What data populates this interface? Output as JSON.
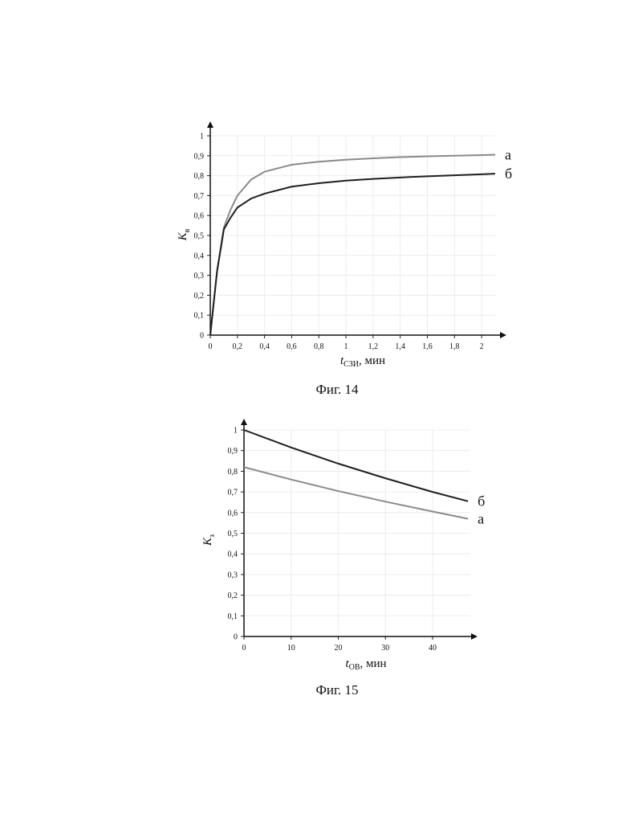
{
  "chart_data": [
    {
      "type": "line",
      "caption": "Фиг. 14",
      "ylabel_symbol": "K",
      "ylabel_subscript": "в",
      "xlabel_symbol": "t",
      "xlabel_subscript": "СЗИ",
      "xlabel_suffix": ", мин",
      "x": [
        0,
        0.05,
        0.1,
        0.15,
        0.2,
        0.3,
        0.4,
        0.6,
        0.8,
        1,
        1.2,
        1.4,
        1.6,
        1.8,
        2,
        2.1
      ],
      "series": [
        {
          "name": "а",
          "color": "#8a8a8a",
          "values": [
            0,
            0.32,
            0.54,
            0.63,
            0.7,
            0.78,
            0.82,
            0.855,
            0.87,
            0.88,
            0.887,
            0.893,
            0.897,
            0.9,
            0.903,
            0.905
          ]
        },
        {
          "name": "б",
          "color": "#1e1e1e",
          "values": [
            0,
            0.32,
            0.53,
            0.59,
            0.64,
            0.685,
            0.71,
            0.745,
            0.762,
            0.775,
            0.784,
            0.791,
            0.797,
            0.802,
            0.807,
            0.81
          ]
        }
      ],
      "xlim": [
        0,
        2.1
      ],
      "ylim": [
        0,
        1
      ],
      "xticks": [
        0,
        {
          "value": 0.2,
          "label": "0,2"
        },
        {
          "value": 0.4,
          "label": "0,4"
        },
        {
          "value": 0.6,
          "label": "0,6"
        },
        {
          "value": 0.8,
          "label": "0,8"
        },
        1,
        {
          "value": 1.2,
          "label": "1,2"
        },
        {
          "value": 1.4,
          "label": "1,4"
        },
        {
          "value": 1.6,
          "label": "1,6"
        },
        {
          "value": 1.8,
          "label": "1,8"
        },
        2
      ],
      "yticks": [
        0,
        {
          "value": 0.1,
          "label": "0,1"
        },
        {
          "value": 0.2,
          "label": "0,2"
        },
        {
          "value": 0.3,
          "label": "0,3"
        },
        {
          "value": 0.4,
          "label": "0,4"
        },
        {
          "value": 0.5,
          "label": "0,5"
        },
        {
          "value": 0.6,
          "label": "0,6"
        },
        {
          "value": 0.7,
          "label": "0,7"
        },
        {
          "value": 0.8,
          "label": "0,8"
        },
        {
          "value": 0.9,
          "label": "0,9"
        },
        1
      ],
      "grid": true
    },
    {
      "type": "line",
      "caption": "Фиг. 15",
      "ylabel_symbol": "K",
      "ylabel_subscript": "з",
      "xlabel_symbol": "t",
      "xlabel_subscript": "ОВ",
      "xlabel_suffix": ", мин",
      "x": [
        0,
        10,
        20,
        30,
        40,
        47.5
      ],
      "series": [
        {
          "name": "б",
          "color": "#1e1e1e",
          "values": [
            1,
            0.915,
            0.837,
            0.766,
            0.7,
            0.655
          ]
        },
        {
          "name": "а",
          "color": "#8a8a8a",
          "values": [
            0.82,
            0.76,
            0.704,
            0.653,
            0.605,
            0.57
          ]
        }
      ],
      "xlim": [
        0,
        48
      ],
      "ylim": [
        0,
        1
      ],
      "xticks": [
        0,
        10,
        20,
        30,
        40
      ],
      "yticks": [
        0,
        {
          "value": 0.1,
          "label": "0,1"
        },
        {
          "value": 0.2,
          "label": "0,2"
        },
        {
          "value": 0.3,
          "label": "0,3"
        },
        {
          "value": 0.4,
          "label": "0,4"
        },
        {
          "value": 0.5,
          "label": "0,5"
        },
        {
          "value": 0.6,
          "label": "0,6"
        },
        {
          "value": 0.7,
          "label": "0,7"
        },
        {
          "value": 0.8,
          "label": "0,8"
        },
        {
          "value": 0.9,
          "label": "0,9"
        },
        1
      ],
      "grid": true
    }
  ]
}
